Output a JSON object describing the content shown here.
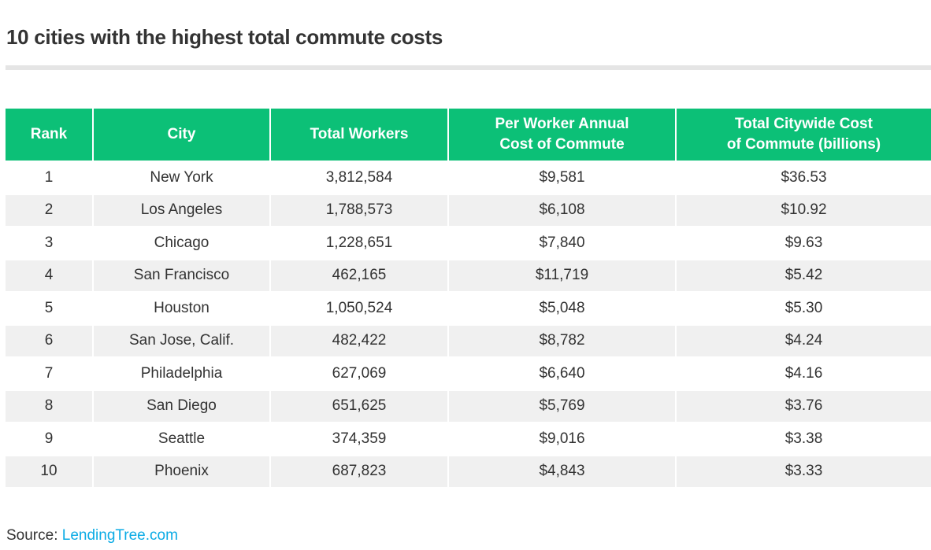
{
  "chart_data": {
    "type": "table",
    "title": "10 cities with the highest total commute costs",
    "columns": [
      "Rank",
      "City",
      "Total Workers",
      "Per Worker Annual Cost of Commute",
      "Total Citywide Cost of Commute (billions)"
    ],
    "header_lines": [
      [
        "Rank"
      ],
      [
        "City"
      ],
      [
        "Total Workers"
      ],
      [
        "Per Worker Annual",
        "Cost of Commute"
      ],
      [
        "Total Citywide Cost",
        "of Commute (billions)"
      ]
    ],
    "rows": [
      [
        "1",
        "New York",
        "3,812,584",
        "$9,581",
        "$36.53"
      ],
      [
        "2",
        "Los Angeles",
        "1,788,573",
        "$6,108",
        "$10.92"
      ],
      [
        "3",
        "Chicago",
        "1,228,651",
        "$7,840",
        "$9.63"
      ],
      [
        "4",
        "San Francisco",
        "462,165",
        "$11,719",
        "$5.42"
      ],
      [
        "5",
        "Houston",
        "1,050,524",
        "$5,048",
        "$5.30"
      ],
      [
        "6",
        "San Jose, Calif.",
        "482,422",
        "$8,782",
        "$4.24"
      ],
      [
        "7",
        "Philadelphia",
        "627,069",
        "$6,640",
        "$4.16"
      ],
      [
        "8",
        "San Diego",
        "651,625",
        "$5,769",
        "$3.76"
      ],
      [
        "9",
        "Seattle",
        "374,359",
        "$9,016",
        "$3.38"
      ],
      [
        "10",
        "Phoenix",
        "687,823",
        "$4,843",
        "$3.33"
      ]
    ],
    "header_color": "#0cc077",
    "stripe_color": "#f0f0f0"
  },
  "source": {
    "label": "Source:",
    "link_text": "LendingTree.com",
    "link_color": "#0aabe5"
  }
}
